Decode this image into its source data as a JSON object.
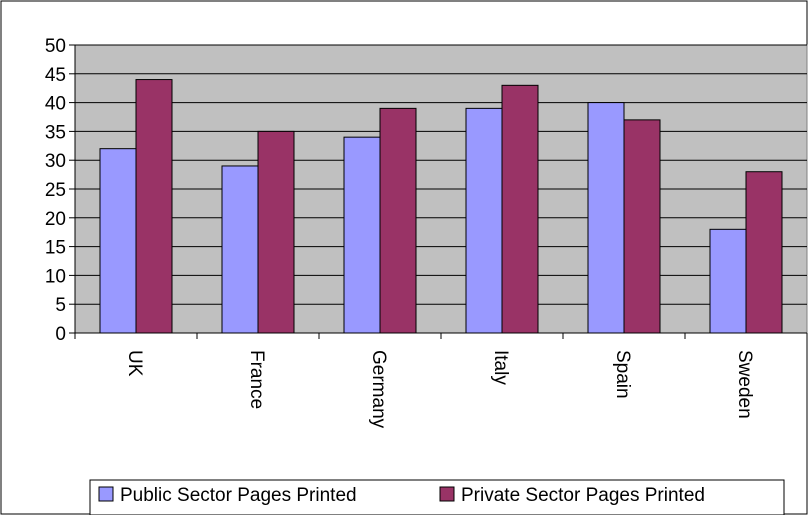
{
  "chart_data": {
    "type": "bar",
    "categories": [
      "UK",
      "France",
      "Germany",
      "Italy",
      "Spain",
      "Sweden"
    ],
    "series": [
      {
        "name": "Public Sector Pages Printed",
        "values": [
          32,
          29,
          34,
          39,
          40,
          18
        ],
        "color": "#9999ff"
      },
      {
        "name": "Private Sector Pages Printed",
        "values": [
          44,
          35,
          39,
          43,
          37,
          28
        ],
        "color": "#993366"
      }
    ],
    "ylim": [
      0,
      50
    ],
    "yticks": [
      "0",
      "5",
      "10",
      "15",
      "20",
      "25",
      "30",
      "35",
      "40",
      "45",
      "50"
    ],
    "grid": true,
    "legend_position": "bottom",
    "plot_background": "#c0c0c0"
  }
}
